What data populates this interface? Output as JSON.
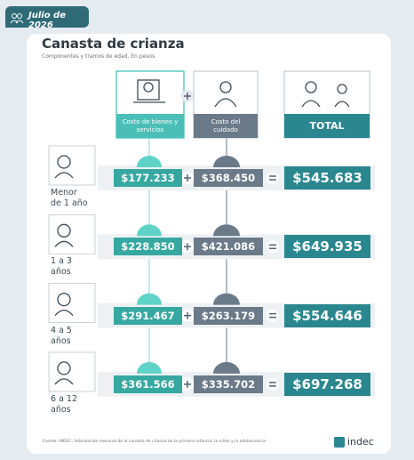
{
  "header": {
    "date": "Julio de 2026"
  },
  "title": "Canasta de crianza",
  "subtitle": "Componentes y tramos de edad. En pesos",
  "columns": [
    "Costo de bienes y servicios",
    "Costo del cuidado",
    "TOTAL"
  ],
  "rows": [
    {
      "age": "Menor de 1 año",
      "goods": "$177.233",
      "care": "$368.450",
      "total": "$545.683"
    },
    {
      "age": "1 a 3 años",
      "goods": "$228.850",
      "care": "$421.086",
      "total": "$649.935"
    },
    {
      "age": "4 a 5 años",
      "goods": "$291.467",
      "care": "$263.179",
      "total": "$554.646"
    },
    {
      "age": "6 a 12 años",
      "goods": "$361.566",
      "care": "$335.702",
      "total": "$697.268"
    }
  ],
  "source": "Fuente: INDEC, Valorización mensual de la canasta de crianza de la primera infancia, la niñez y la adolescencia.",
  "logo": "indec"
}
